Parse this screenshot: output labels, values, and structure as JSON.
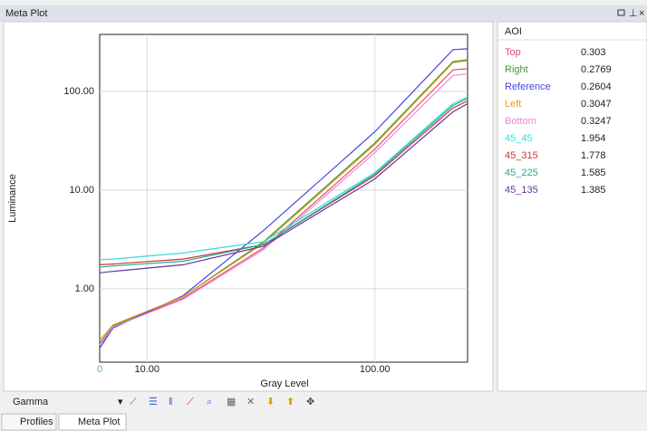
{
  "window": {
    "title": "Meta Plot"
  },
  "toolbar": {
    "mode": "Gamma"
  },
  "tabs": [
    "Profiles",
    "Meta Plot"
  ],
  "aoi_table": {
    "header": "AOI",
    "values": [
      0.303,
      0.2769,
      0.2604,
      0.3047,
      0.3247,
      1.954,
      1.778,
      1.585,
      1.385
    ]
  },
  "chart_data": {
    "type": "line",
    "x_label": "Gray Level",
    "y_label": "Luminance",
    "x_start_label": "0",
    "log_x": true,
    "log_y": true,
    "grid": true,
    "xlim": [
      6.2,
      255
    ],
    "ylim": [
      0.18,
      378
    ],
    "xticks": [
      {
        "value": 10,
        "label": "10.00"
      },
      {
        "value": 100,
        "label": "100.00"
      }
    ],
    "yticks": [
      {
        "value": 1,
        "label": "1.00"
      },
      {
        "value": 10,
        "label": "10.00"
      },
      {
        "value": 100,
        "label": "100.00"
      }
    ],
    "x": [
      6.2,
      7.1,
      14.4,
      32.5,
      100,
      220,
      255
    ],
    "series": [
      {
        "name": "Top",
        "color": "#e0506a",
        "values": [
          0.25,
          0.42,
          0.8,
          2.6,
          26,
          165,
          170
        ]
      },
      {
        "name": "Right",
        "color": "#3a9a3a",
        "values": [
          0.28,
          0.42,
          0.83,
          3.0,
          30,
          200,
          210
        ]
      },
      {
        "name": "Reference",
        "color": "#4444dd",
        "values": [
          0.25,
          0.4,
          0.85,
          3.9,
          39,
          265,
          270
        ]
      },
      {
        "name": "Left",
        "color": "#e0a020",
        "values": [
          0.3,
          0.43,
          0.83,
          2.9,
          29,
          195,
          205
        ]
      },
      {
        "name": "Bottom",
        "color": "#ee88dd",
        "values": [
          0.27,
          0.41,
          0.78,
          2.5,
          24,
          145,
          150
        ]
      },
      {
        "name": "45_45",
        "color": "#33dddd",
        "values": [
          1.97,
          2.0,
          2.3,
          3.0,
          15,
          75,
          88
        ]
      },
      {
        "name": "45_315",
        "color": "#cc3333",
        "values": [
          1.75,
          1.78,
          2.0,
          2.8,
          14,
          68,
          80
        ]
      },
      {
        "name": "45_225",
        "color": "#22aa99",
        "values": [
          1.65,
          1.7,
          1.9,
          2.8,
          14.5,
          72,
          85
        ]
      },
      {
        "name": "45_135",
        "color": "#663399",
        "values": [
          1.45,
          1.5,
          1.75,
          2.7,
          13,
          62,
          75
        ]
      }
    ]
  }
}
